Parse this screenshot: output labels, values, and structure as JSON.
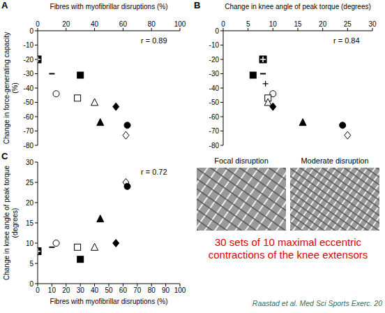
{
  "chart_data": [
    {
      "panel": "A",
      "type": "scatter",
      "x_label": "Fibres with myofibrillar disruptions (%)",
      "y_label": "Change in force-generating capacity (%)",
      "xlim": [
        0,
        100
      ],
      "xticks": [
        0,
        20,
        40,
        60,
        80,
        100
      ],
      "ylim": [
        -80,
        0
      ],
      "yticks": [
        -80,
        -70,
        -60,
        -50,
        -40,
        -30,
        -20,
        -10,
        0
      ],
      "annotation": "r = 0.89",
      "color": "#000000",
      "x": [
        0,
        10,
        30,
        13,
        28,
        40,
        44,
        55,
        63,
        62
      ],
      "y": [
        -20,
        -30,
        -31,
        -44,
        -47,
        -50,
        -64,
        -53,
        -66,
        -73
      ],
      "markers": [
        "crossed_square",
        "dash",
        "square",
        "circle_open",
        "square_open",
        "triangle_open",
        "triangle",
        "diamond",
        "circle",
        "diamond_open"
      ]
    },
    {
      "panel": "B",
      "type": "scatter",
      "x_label": "Change in knee angle of peak torque (degrees)",
      "xlim": [
        0,
        30
      ],
      "xticks": [
        0,
        5,
        10,
        15,
        20,
        25,
        30
      ],
      "ylim": [
        -80,
        0
      ],
      "yticks": [
        -80,
        -70,
        -60,
        -50,
        -40,
        -30,
        -20,
        -10,
        0
      ],
      "annotation": "r = 0.84",
      "color": "#000000",
      "x": [
        8,
        8.5,
        8,
        6,
        10,
        9,
        9,
        10,
        16,
        24,
        25
      ],
      "y": [
        -20,
        -37,
        -30,
        -31,
        -44,
        -47,
        -50,
        -53,
        -64,
        -66,
        -73
      ],
      "markers": [
        "crossed_square",
        "plus",
        "dash",
        "square",
        "circle_open",
        "square_open",
        "triangle_open",
        "diamond",
        "triangle",
        "circle",
        "diamond_open"
      ]
    },
    {
      "panel": "C",
      "type": "scatter",
      "x_label": "Fibres with myofibrillar disruptions (%)",
      "y_label": "Change in knee angle of peak torque (degrees)",
      "xlim": [
        0,
        100
      ],
      "xticks": [
        0,
        10,
        20,
        30,
        40,
        50,
        60,
        70,
        80,
        90,
        100
      ],
      "ylim": [
        0,
        30
      ],
      "yticks": [
        0,
        5,
        10,
        15,
        20,
        25,
        30
      ],
      "annotation": "r = 0.72",
      "color": "#000000",
      "x": [
        0,
        10,
        13,
        30,
        28,
        40,
        44,
        55,
        62,
        63
      ],
      "y": [
        8,
        9,
        10,
        6,
        9,
        9,
        16,
        10,
        25,
        24
      ],
      "markers": [
        "crossed_square",
        "dash",
        "circle_open",
        "square",
        "square_open",
        "triangle_open",
        "triangle",
        "diamond",
        "diamond_open",
        "circle"
      ]
    }
  ],
  "images": [
    "Focal disruption",
    "Moderate disruption"
  ],
  "caption": "30 sets of 10 maximal eccentric contractions of the knee extensors",
  "caption_color": "#e00000",
  "citation": "Raastad et al. Med Sci Sports Exerc. 20"
}
